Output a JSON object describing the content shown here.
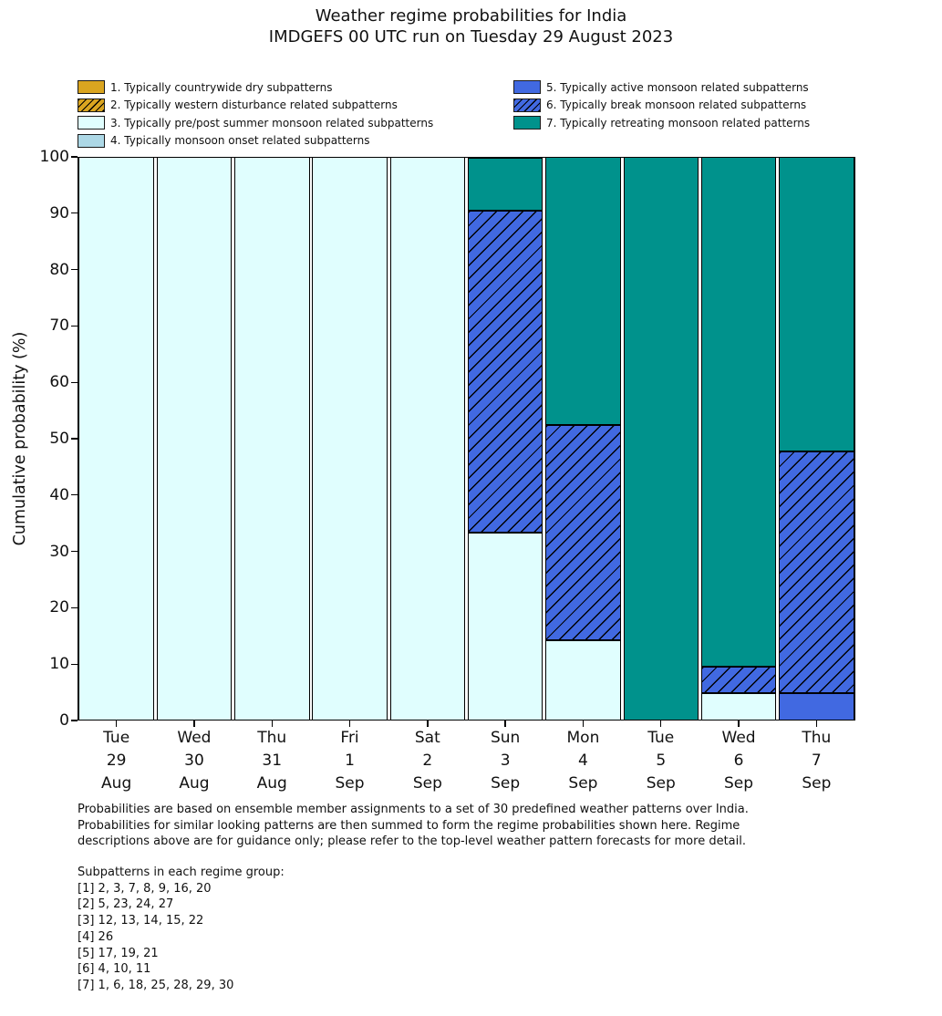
{
  "title": {
    "line1": "Weather regime probabilities for India",
    "line2": "IMDGEFS 00 UTC run on Tuesday 29 August 2023"
  },
  "y_axis": {
    "label": "Cumulative probability (%)",
    "ticks": [
      0,
      10,
      20,
      30,
      40,
      50,
      60,
      70,
      80,
      90,
      100
    ]
  },
  "regime_styles": {
    "1": {
      "color": "#DAA520",
      "hatch": false
    },
    "2": {
      "color": "#DAA520",
      "hatch": true
    },
    "3": {
      "color": "#E0FEFE",
      "hatch": false
    },
    "4": {
      "color": "#ADD8E6",
      "hatch": false
    },
    "5": {
      "color": "#4169E1",
      "hatch": false
    },
    "6": {
      "color": "#4169E1",
      "hatch": true
    },
    "7": {
      "color": "#00928C",
      "hatch": false
    }
  },
  "legend": {
    "left": [
      {
        "regime": 1,
        "label": "1. Typically countrywide dry subpatterns"
      },
      {
        "regime": 2,
        "label": "2. Typically western disturbance related subpatterns"
      },
      {
        "regime": 3,
        "label": "3. Typically pre/post summer monsoon related subpatterns"
      },
      {
        "regime": 4,
        "label": "4. Typically monsoon onset related subpatterns"
      }
    ],
    "right": [
      {
        "regime": 5,
        "label": "5. Typically active monsoon related subpatterns"
      },
      {
        "regime": 6,
        "label": "6. Typically break monsoon related subpatterns"
      },
      {
        "regime": 7,
        "label": "7. Typically retreating monsoon related patterns"
      }
    ]
  },
  "chart_data": {
    "type": "bar",
    "stacked": true,
    "title": "Weather regime probabilities for India",
    "subtitle": "IMDGEFS 00 UTC run on Tuesday 29 August 2023",
    "ylabel": "Cumulative probability (%)",
    "ylim": [
      0,
      100
    ],
    "grid": false,
    "legend_position": "top",
    "categories": [
      [
        "Tue",
        "29",
        "Aug"
      ],
      [
        "Wed",
        "30",
        "Aug"
      ],
      [
        "Thu",
        "31",
        "Aug"
      ],
      [
        "Fri",
        "1",
        "Sep"
      ],
      [
        "Sat",
        "2",
        "Sep"
      ],
      [
        "Sun",
        "3",
        "Sep"
      ],
      [
        "Mon",
        "4",
        "Sep"
      ],
      [
        "Tue",
        "5",
        "Sep"
      ],
      [
        "Wed",
        "6",
        "Sep"
      ],
      [
        "Thu",
        "7",
        "Sep"
      ]
    ],
    "series": [
      {
        "regime": 1,
        "name": "1. Typically countrywide dry subpatterns",
        "values": [
          0,
          0,
          0,
          0,
          0,
          0,
          0,
          0,
          0,
          0
        ]
      },
      {
        "regime": 2,
        "name": "2. Typically western disturbance related subpatterns",
        "values": [
          0,
          0,
          0,
          0,
          0,
          0,
          0,
          0,
          0,
          0
        ]
      },
      {
        "regime": 3,
        "name": "3. Typically pre/post summer monsoon related subpatterns",
        "values": [
          100,
          100,
          100,
          100,
          100,
          33.3,
          14.3,
          0,
          4.8,
          0
        ]
      },
      {
        "regime": 4,
        "name": "4. Typically monsoon onset related subpatterns",
        "values": [
          0,
          0,
          0,
          0,
          0,
          0,
          0,
          0,
          0,
          0
        ]
      },
      {
        "regime": 5,
        "name": "5. Typically active monsoon related subpatterns",
        "values": [
          0,
          0,
          0,
          0,
          0,
          0,
          0,
          0,
          0,
          4.8
        ]
      },
      {
        "regime": 6,
        "name": "6. Typically break monsoon related subpatterns",
        "values": [
          0,
          0,
          0,
          0,
          0,
          57.1,
          38.1,
          0,
          4.8,
          42.9
        ]
      },
      {
        "regime": 7,
        "name": "7. Typically retreating monsoon related patterns",
        "values": [
          0,
          0,
          0,
          0,
          0,
          9.5,
          47.6,
          100,
          90.5,
          52.4
        ]
      }
    ]
  },
  "footer": {
    "description_lines": [
      "Probabilities are based on ensemble member assignments to a set of 30 predefined weather patterns over India.",
      "Probabilities for similar looking patterns are then summed to form the regime probabilities shown here. Regime",
      "descriptions above are for guidance only; please refer to the top-level weather pattern forecasts for more detail."
    ],
    "subpatterns_header": "Subpatterns in each regime group:",
    "subpattern_lines": [
      "[1] 2, 3, 7, 8, 9, 16, 20",
      "[2] 5, 23, 24, 27",
      "[3] 12, 13, 14, 15, 22",
      "[4] 26",
      "[5] 17, 19, 21",
      "[6] 4, 10, 11",
      "[7] 1, 6, 18, 25, 28, 29, 30"
    ]
  }
}
